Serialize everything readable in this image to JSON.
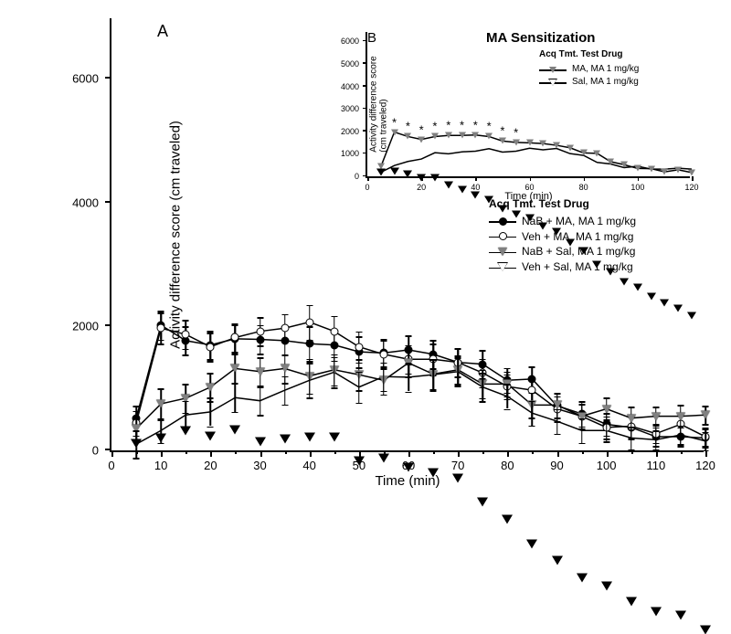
{
  "main_chart": {
    "type": "line-scatter-errorbar",
    "panel_label": "A",
    "ylabel": "Activity difference score (cm traveled)",
    "xlabel": "Time (min)",
    "title_fontsize": 15,
    "label_fontsize": 15,
    "tick_fontsize": 13,
    "xlim": [
      0,
      120
    ],
    "ylim": [
      0,
      7000
    ],
    "xticks": [
      0,
      10,
      20,
      30,
      40,
      50,
      60,
      70,
      80,
      90,
      100,
      110,
      120
    ],
    "yticks": [
      0,
      2000,
      4000,
      6000
    ],
    "xtick_minor": [
      5,
      15,
      25,
      35,
      45,
      55,
      65,
      75,
      85,
      95,
      105,
      115
    ],
    "background_color": "#ffffff",
    "axis_color": "#000000",
    "legend_header": "Acq Tmt. Test Drug",
    "series": [
      {
        "name": "NaB + MA, MA 1 mg/kg",
        "marker": "circle-black",
        "color": "#000000",
        "x": [
          5,
          10,
          15,
          20,
          25,
          30,
          35,
          40,
          45,
          50,
          55,
          60,
          65,
          70,
          75,
          80,
          85,
          90,
          95,
          100,
          105,
          110,
          115,
          120
        ],
        "y": [
          550,
          2050,
          1800,
          1730,
          1830,
          1820,
          1800,
          1750,
          1730,
          1620,
          1600,
          1650,
          1580,
          1450,
          1420,
          1160,
          1180,
          750,
          620,
          450,
          400,
          250,
          250,
          230
        ],
        "err": [
          200,
          230,
          230,
          230,
          230,
          230,
          230,
          280,
          250,
          250,
          230,
          230,
          230,
          230,
          230,
          200,
          200,
          200,
          200,
          180,
          180,
          150,
          150,
          150
        ]
      },
      {
        "name": "Veh + MA, MA 1 mg/kg",
        "marker": "circle-white",
        "color": "#000000",
        "x": [
          5,
          10,
          15,
          20,
          25,
          30,
          35,
          40,
          45,
          50,
          55,
          60,
          65,
          70,
          75,
          80,
          85,
          90,
          95,
          100,
          105,
          110,
          115,
          120
        ],
        "y": [
          470,
          2000,
          1900,
          1700,
          1850,
          1950,
          2000,
          2100,
          1950,
          1700,
          1580,
          1500,
          1500,
          1450,
          1280,
          1060,
          1000,
          700,
          580,
          400,
          420,
          300,
          450,
          250
        ],
        "err": [
          200,
          250,
          230,
          230,
          230,
          230,
          230,
          280,
          250,
          250,
          230,
          230,
          250,
          230,
          230,
          200,
          200,
          200,
          200,
          180,
          180,
          150,
          180,
          150
        ]
      },
      {
        "name": "NaB + Sal, MA 1 mg/kg",
        "marker": "triangle-down-dark",
        "color": "#000000",
        "x": [
          5,
          10,
          15,
          20,
          25,
          30,
          35,
          40,
          45,
          50,
          55,
          60,
          65,
          70,
          75,
          80,
          85,
          90,
          95,
          100,
          105,
          110,
          115,
          120
        ],
        "y": [
          380,
          780,
          870,
          1050,
          1350,
          1300,
          1350,
          1230,
          1330,
          1250,
          1160,
          1440,
          1260,
          1330,
          1100,
          1100,
          760,
          760,
          580,
          700,
          550,
          580,
          580,
          600
        ],
        "err": [
          200,
          250,
          230,
          230,
          230,
          230,
          230,
          280,
          250,
          250,
          230,
          230,
          250,
          230,
          230,
          200,
          200,
          200,
          200,
          180,
          180,
          150,
          180,
          150
        ]
      },
      {
        "name": "Veh + Sal, MA 1 mg/kg",
        "marker": "triangle-down-white",
        "color": "#000000",
        "x": [
          5,
          10,
          15,
          20,
          25,
          30,
          35,
          40,
          45,
          50,
          55,
          60,
          65,
          70,
          75,
          80,
          85,
          90,
          95,
          100,
          105,
          110,
          115,
          120
        ],
        "y": [
          130,
          350,
          600,
          650,
          880,
          830,
          1000,
          1160,
          1290,
          1050,
          1220,
          1210,
          1250,
          1300,
          1050,
          900,
          630,
          500,
          350,
          350,
          230,
          200,
          280,
          180
        ],
        "err": [
          220,
          200,
          230,
          230,
          230,
          230,
          230,
          280,
          250,
          250,
          230,
          230,
          250,
          230,
          230,
          200,
          200,
          200,
          200,
          180,
          180,
          150,
          150,
          150
        ]
      }
    ]
  },
  "inset_chart": {
    "type": "line-scatter",
    "panel_label": "B",
    "title": "MA Sensitization",
    "ylabel": "Activity difference score\n(cm traveled)",
    "xlabel": "Time (min)",
    "title_fontsize": 15,
    "label_fontsize": 10,
    "tick_fontsize": 9,
    "xlim": [
      0,
      120
    ],
    "ylim": [
      0,
      6500
    ],
    "xticks": [
      0,
      20,
      40,
      60,
      80,
      100,
      120
    ],
    "yticks": [
      0,
      1000,
      2000,
      3000,
      4000,
      5000,
      6000
    ],
    "legend_header": "Acq Tmt. Test Drug",
    "series": [
      {
        "name": "MA, MA 1 mg/kg",
        "marker": "triangle-down-dark-small",
        "color": "#000000",
        "x": [
          5,
          10,
          15,
          20,
          25,
          30,
          35,
          40,
          45,
          50,
          55,
          60,
          65,
          70,
          75,
          80,
          85,
          90,
          95,
          100,
          105,
          110,
          115,
          120
        ],
        "y": [
          510,
          2050,
          1850,
          1720,
          1850,
          1900,
          1900,
          1920,
          1850,
          1650,
          1590,
          1570,
          1540,
          1460,
          1350,
          1120,
          1100,
          730,
          600,
          430,
          420,
          280,
          370,
          250
        ]
      },
      {
        "name": "Sal, MA 1 mg/kg",
        "marker": "triangle-down-white-small",
        "color": "#000000",
        "x": [
          5,
          10,
          15,
          20,
          25,
          30,
          35,
          40,
          45,
          50,
          55,
          60,
          65,
          70,
          75,
          80,
          85,
          90,
          95,
          100,
          105,
          110,
          115,
          120
        ],
        "y": [
          260,
          560,
          740,
          850,
          1130,
          1080,
          1170,
          1200,
          1310,
          1160,
          1200,
          1330,
          1260,
          1320,
          1090,
          1010,
          700,
          630,
          470,
          530,
          400,
          400,
          440,
          400
        ]
      }
    ],
    "significance_x": [
      10,
      15,
      20,
      25,
      30,
      35,
      40,
      45,
      50,
      55
    ],
    "significance_marker": "*"
  }
}
